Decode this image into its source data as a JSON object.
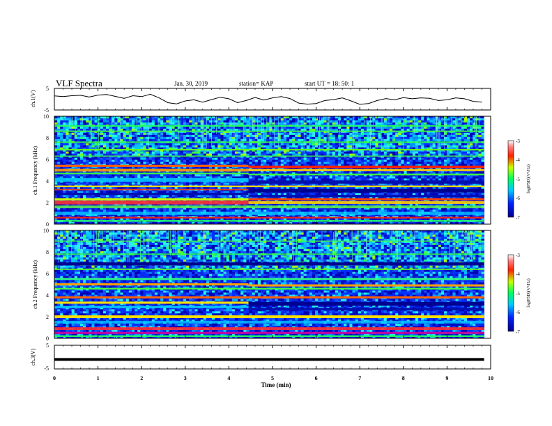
{
  "header": {
    "title": "VLF Spectra",
    "date": "Jan. 30, 2019",
    "station": "station= KAP",
    "start": "start  UT =   18: 50: 1"
  },
  "chart_data": [
    {
      "type": "line",
      "panel": "ch1-waveform",
      "ylabel": "ch.1(V)",
      "xlabel": "",
      "xlim": [
        0,
        10
      ],
      "ylim": [
        -5,
        5
      ],
      "yticks": [
        "5",
        "-5"
      ],
      "x": [
        0,
        0.2,
        0.4,
        0.6,
        0.8,
        1.0,
        1.2,
        1.4,
        1.6,
        1.8,
        2.0,
        2.2,
        2.4,
        2.6,
        2.8,
        3.0,
        3.2,
        3.4,
        3.6,
        3.8,
        4.0,
        4.2,
        4.4,
        4.6,
        4.8,
        5.0,
        5.2,
        5.4,
        5.6,
        5.8,
        6.0,
        6.2,
        6.4,
        6.6,
        6.8,
        7.0,
        7.2,
        7.4,
        7.6,
        7.8,
        8.0,
        8.2,
        8.4,
        8.6,
        8.8,
        9.0,
        9.2,
        9.4,
        9.6,
        9.8
      ],
      "values": [
        1.5,
        1.2,
        1.6,
        1.8,
        1.0,
        1.9,
        2.2,
        1.3,
        0.4,
        1.6,
        1.2,
        2.3,
        0.6,
        -1.6,
        -2.2,
        -0.8,
        -0.3,
        -1.4,
        -0.2,
        0.9,
        0.2,
        -1.6,
        -0.6,
        0.8,
        -0.4,
        0.6,
        1.2,
        0.3,
        -1.8,
        -2.3,
        -2.0,
        -0.6,
        -0.2,
        0.6,
        -0.8,
        -2.4,
        -2.0,
        -0.6,
        0.3,
        -0.3,
        0.7,
        0.2,
        0.6,
        0.4,
        -0.6,
        -0.3,
        0.6,
        0.2,
        -1.0,
        -1.4
      ]
    },
    {
      "type": "heatmap",
      "panel": "ch1-spectrogram",
      "ylabel": "ch.1 Frequency (kHz)",
      "xlim": [
        0,
        10
      ],
      "ylim": [
        0,
        10
      ],
      "yticks": [
        "0",
        "2",
        "4",
        "6",
        "8",
        "10"
      ],
      "xticks": [
        "0",
        "1",
        "2",
        "3",
        "4",
        "5",
        "6",
        "7",
        "8",
        "9",
        "10"
      ],
      "time_end": 9.85,
      "colorbar": {
        "label": "log(PSD)(V²/Hz)",
        "range": [
          -7,
          -3
        ],
        "ticks": [
          "-3",
          "-4",
          "-5",
          "-6",
          "-7"
        ]
      }
    },
    {
      "type": "heatmap",
      "panel": "ch2-spectrogram",
      "ylabel": "ch.2 Frequency (kHz)",
      "xlim": [
        0,
        10
      ],
      "ylim": [
        0,
        10
      ],
      "yticks": [
        "0",
        "2",
        "4",
        "6",
        "8",
        "10"
      ],
      "xticks": [
        "0",
        "1",
        "2",
        "3",
        "4",
        "5",
        "6",
        "7",
        "8",
        "9",
        "10"
      ],
      "time_end": 9.85,
      "colorbar": {
        "label": "log(PSD)(V²/Hz)",
        "range": [
          -7,
          -3
        ],
        "ticks": [
          "-3",
          "-4",
          "-5",
          "-6",
          "-7"
        ]
      }
    },
    {
      "type": "line",
      "panel": "ch3-waveform",
      "ylabel": "ch.3(V)",
      "xlabel": "Time  (min)",
      "xlim": [
        0,
        10
      ],
      "ylim": [
        -5,
        5
      ],
      "yticks": [
        "5",
        "-5"
      ],
      "xticks": [
        "0",
        "1",
        "2",
        "3",
        "4",
        "5",
        "6",
        "7",
        "8",
        "9",
        "10"
      ],
      "x": [
        0,
        9.85
      ],
      "values": [
        -1.0,
        -1.0
      ]
    }
  ],
  "colors": {
    "axes": "#000000",
    "trace": "#000000",
    "background": "#ffffff"
  }
}
